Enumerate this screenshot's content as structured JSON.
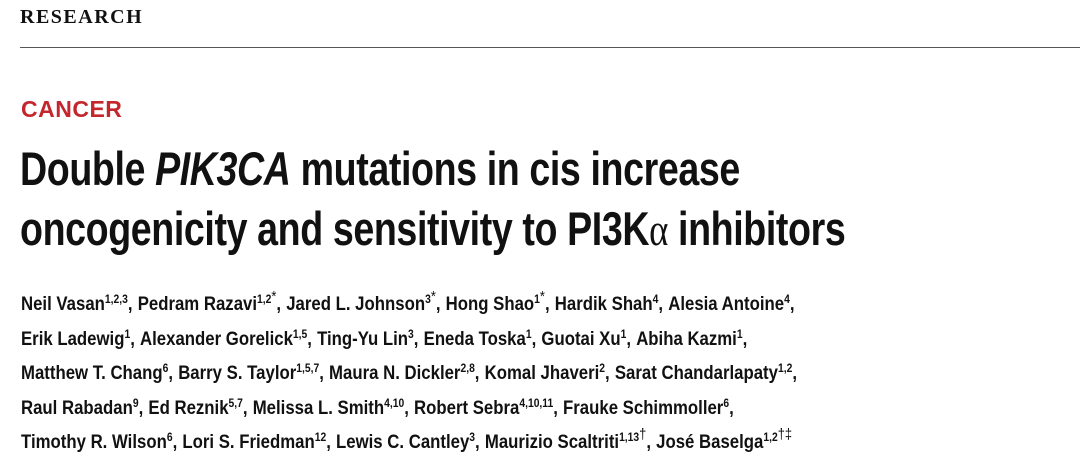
{
  "header": {
    "section": "RESEARCH"
  },
  "article": {
    "category": "CANCER",
    "title": {
      "lines": [
        [
          {
            "text": "Double ",
            "italic": false
          },
          {
            "text": "PIK3CA",
            "italic": true
          },
          {
            "text": " mutations in cis increase",
            "italic": false
          }
        ],
        [
          {
            "text": "oncogenicity and sensitivity to PI3K",
            "italic": false
          },
          {
            "text": "α",
            "italic": false,
            "greek": true
          },
          {
            "text": " inhibitors",
            "italic": false
          }
        ]
      ]
    },
    "authors": {
      "lines": [
        [
          {
            "name": "Neil Vasan",
            "aff": "1,2,3",
            "sep": ","
          },
          {
            "name": "Pedram Razavi",
            "aff": "1,2",
            "mark": "*",
            "sep": ","
          },
          {
            "name": "Jared L. Johnson",
            "aff": "3",
            "mark": "*",
            "sep": ","
          },
          {
            "name": "Hong Shao",
            "aff": "1",
            "mark": "*",
            "sep": ","
          },
          {
            "name": "Hardik Shah",
            "aff": "4",
            "sep": ","
          },
          {
            "name": "Alesia Antoine",
            "aff": "4",
            "sep": ","
          }
        ],
        [
          {
            "name": "Erik Ladewig",
            "aff": "1",
            "sep": ","
          },
          {
            "name": "Alexander Gorelick",
            "aff": "1,5",
            "sep": ","
          },
          {
            "name": "Ting-Yu Lin",
            "aff": "3",
            "sep": ","
          },
          {
            "name": "Eneda Toska",
            "aff": "1",
            "sep": ","
          },
          {
            "name": "Guotai Xu",
            "aff": "1",
            "sep": ","
          },
          {
            "name": "Abiha Kazmi",
            "aff": "1",
            "sep": ","
          }
        ],
        [
          {
            "name": "Matthew T. Chang",
            "aff": "6",
            "sep": ","
          },
          {
            "name": "Barry S. Taylor",
            "aff": "1,5,7",
            "sep": ","
          },
          {
            "name": "Maura N. Dickler",
            "aff": "2,8",
            "sep": ","
          },
          {
            "name": "Komal Jhaveri",
            "aff": "2",
            "sep": ","
          },
          {
            "name": "Sarat Chandarlapaty",
            "aff": "1,2",
            "sep": ","
          }
        ],
        [
          {
            "name": "Raul Rabadan",
            "aff": "9",
            "sep": ","
          },
          {
            "name": "Ed Reznik",
            "aff": "5,7",
            "sep": ","
          },
          {
            "name": "Melissa L. Smith",
            "aff": "4,10",
            "sep": ","
          },
          {
            "name": "Robert Sebra",
            "aff": "4,10,11",
            "sep": ","
          },
          {
            "name": "Frauke Schimmoller",
            "aff": "6",
            "sep": ","
          }
        ],
        [
          {
            "name": "Timothy R. Wilson",
            "aff": "6",
            "sep": ","
          },
          {
            "name": "Lori S. Friedman",
            "aff": "12",
            "sep": ","
          },
          {
            "name": "Lewis C. Cantley",
            "aff": "3",
            "sep": ","
          },
          {
            "name": "Maurizio Scaltriti",
            "aff": "1,13",
            "mark": "†",
            "sep": ","
          },
          {
            "name": "José Baselga",
            "aff": "1,2",
            "mark": "†‡"
          }
        ]
      ]
    }
  }
}
